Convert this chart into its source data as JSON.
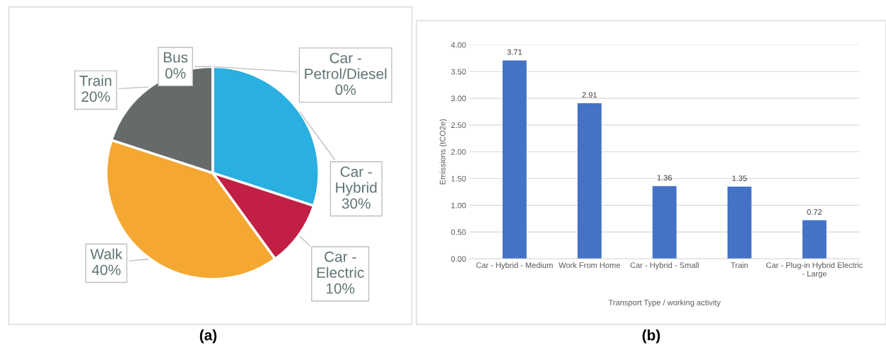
{
  "chart_data": [
    {
      "type": "pie",
      "categories": [
        "Car - Petrol/Diesel",
        "Car - Hybrid",
        "Car - Electric",
        "Walk",
        "Train",
        "Bus"
      ],
      "values": [
        0,
        30,
        10,
        40,
        20,
        0
      ],
      "colors": [
        "#e8e8e8",
        "#29afe0",
        "#c21f44",
        "#f4a832",
        "#656b6a",
        "#4a7eb8"
      ],
      "value_labels": [
        "0%",
        "30%",
        "10%",
        "40%",
        "20%",
        "0%"
      ],
      "annotations": [
        "(a)"
      ]
    },
    {
      "type": "bar",
      "categories": [
        "Car - Hybrid - Medium",
        "Work From Home",
        "Car - Hybrid - Small",
        "Train",
        "Car - Plug-in Hybrid Electric - Large"
      ],
      "values": [
        3.71,
        2.91,
        1.36,
        1.35,
        0.72
      ],
      "color": "#4472c4",
      "data_labels": true,
      "xlabel": "Transport Type / working activity",
      "ylabel": "Emissions (tCO2e)",
      "ylim": [
        0,
        4
      ],
      "yticks": [
        {
          "value": 0,
          "label": "0.00"
        },
        {
          "value": 0.5,
          "label": "0.50"
        },
        {
          "value": 1,
          "label": "1.00"
        },
        {
          "value": 1.5,
          "label": "1.50"
        },
        {
          "value": 2,
          "label": "2.00"
        },
        {
          "value": 2.5,
          "label": "2.50"
        },
        {
          "value": 3,
          "label": "3.00"
        },
        {
          "value": 3.5,
          "label": "3.50"
        },
        {
          "value": 4,
          "label": "4.00"
        }
      ],
      "grid": "y",
      "annotations": [
        "(b)"
      ]
    }
  ]
}
